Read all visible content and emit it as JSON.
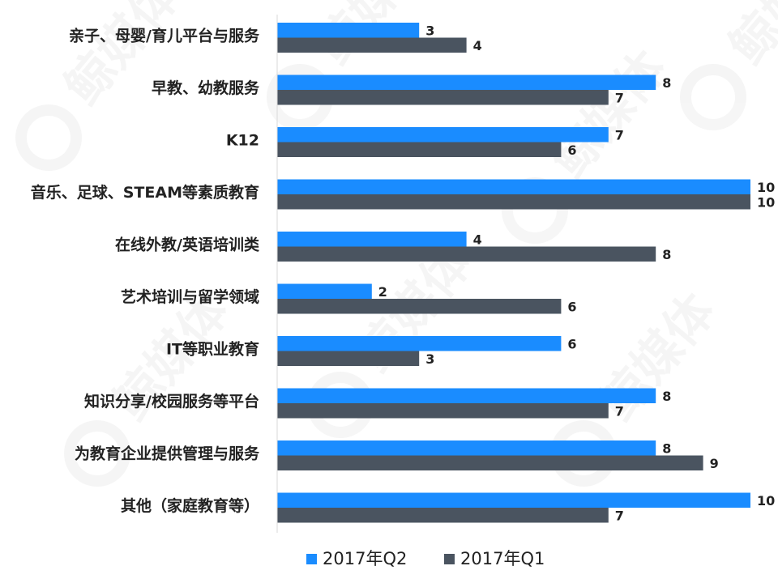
{
  "chart_data": {
    "type": "bar",
    "orientation": "horizontal",
    "categories": [
      "亲子、母婴/育儿平台与服务",
      "早教、幼教服务",
      "K12",
      "音乐、足球、STEAM等素质教育",
      "在线外教/英语培训类",
      "艺术培训与留学领域",
      "IT等职业教育",
      "知识分享/校园服务等平台",
      "为教育企业提供管理与服务",
      "其他（家庭教育等）"
    ],
    "series": [
      {
        "name": "2017年Q2",
        "color": "#1a8cff",
        "values": [
          3,
          8,
          7,
          10,
          4,
          2,
          6,
          8,
          8,
          10
        ]
      },
      {
        "name": "2017年Q1",
        "color": "#4a5460",
        "values": [
          4,
          7,
          6,
          10,
          8,
          6,
          3,
          7,
          9,
          7
        ]
      }
    ],
    "xlim": [
      0,
      10
    ],
    "grid": false,
    "legend_position": "bottom",
    "data_labels": true,
    "watermark": "鲸媒体"
  }
}
